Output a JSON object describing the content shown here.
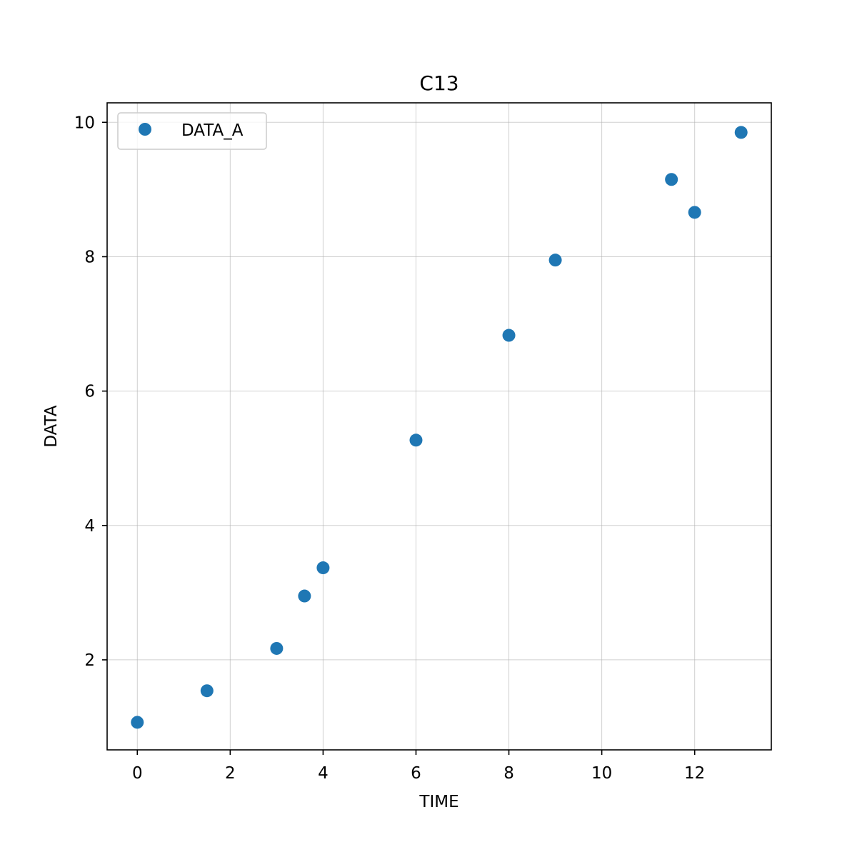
{
  "chart_data": {
    "type": "scatter",
    "title": "C13",
    "xlabel": "TIME",
    "ylabel": "DATA",
    "xlim": [
      -0.65,
      13.65
    ],
    "ylim": [
      0.66,
      10.29
    ],
    "xticks": [
      0,
      2,
      4,
      6,
      8,
      10,
      12
    ],
    "yticks": [
      2,
      4,
      6,
      8,
      10
    ],
    "grid": true,
    "legend_position": "top-left",
    "series": [
      {
        "name": "DATA_A",
        "color": "#1f77b4",
        "marker": "circle",
        "x": [
          0,
          1.5,
          3,
          3.6,
          4,
          6,
          8,
          9,
          11.5,
          12,
          13
        ],
        "y": [
          1.07,
          1.54,
          2.17,
          2.95,
          3.37,
          5.27,
          6.83,
          7.95,
          9.15,
          8.66,
          9.85
        ]
      }
    ]
  }
}
